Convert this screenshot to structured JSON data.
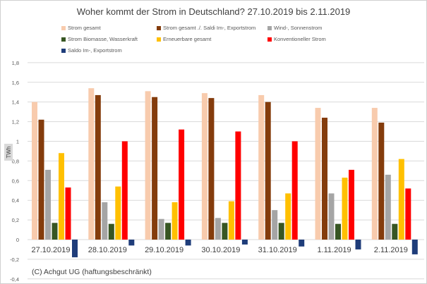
{
  "chart_data": {
    "type": "bar",
    "title": "Woher kommt der Strom in Deutschland? 27.10.2019 bis 2.11.2019",
    "ylabel": "TWh",
    "xlabel": "",
    "ylim": [
      -0.4,
      1.8
    ],
    "yticks": [
      "-0,4",
      "-0,2",
      "0",
      "0,2",
      "0,4",
      "0,6",
      "0,8",
      "1",
      "1,2",
      "1,4",
      "1,6",
      "1,8"
    ],
    "categories": [
      "27.10.2019",
      "28.10.2019",
      "29.10.2019",
      "30.10.2019",
      "31.10.2019",
      "1.11.2019",
      "2.11.2019"
    ],
    "series": [
      {
        "name": "Strom gesamt",
        "color": "#f8cbad",
        "values": [
          1.4,
          1.54,
          1.51,
          1.49,
          1.47,
          1.34,
          1.34
        ]
      },
      {
        "name": "Strom gesamt ./. Saldi Im-, Exportstrom",
        "color": "#843c0c",
        "values": [
          1.22,
          1.47,
          1.45,
          1.44,
          1.4,
          1.24,
          1.19
        ]
      },
      {
        "name": "Wind-, Sonnenstrom",
        "color": "#a5a5a5",
        "values": [
          0.71,
          0.38,
          0.21,
          0.22,
          0.3,
          0.47,
          0.66
        ]
      },
      {
        "name": "Strom Biomasse, Wasserkraft",
        "color": "#375623",
        "values": [
          0.17,
          0.16,
          0.17,
          0.17,
          0.17,
          0.16,
          0.16
        ]
      },
      {
        "name": "Erneuerbare gesamt",
        "color": "#ffc000",
        "values": [
          0.88,
          0.54,
          0.38,
          0.39,
          0.47,
          0.63,
          0.82
        ]
      },
      {
        "name": "Konventioneller Strom",
        "color": "#ff0000",
        "values": [
          0.53,
          1.0,
          1.12,
          1.1,
          1.0,
          0.71,
          0.52
        ]
      },
      {
        "name": "Saldo Im-, Exportstrom",
        "color": "#1f3d7a",
        "values": [
          -0.18,
          -0.06,
          -0.06,
          -0.05,
          -0.07,
          -0.1,
          -0.15
        ]
      }
    ],
    "grid": true,
    "legend": "top",
    "annotation": "(C) Achgut UG (haftungsbeschränkt)"
  }
}
